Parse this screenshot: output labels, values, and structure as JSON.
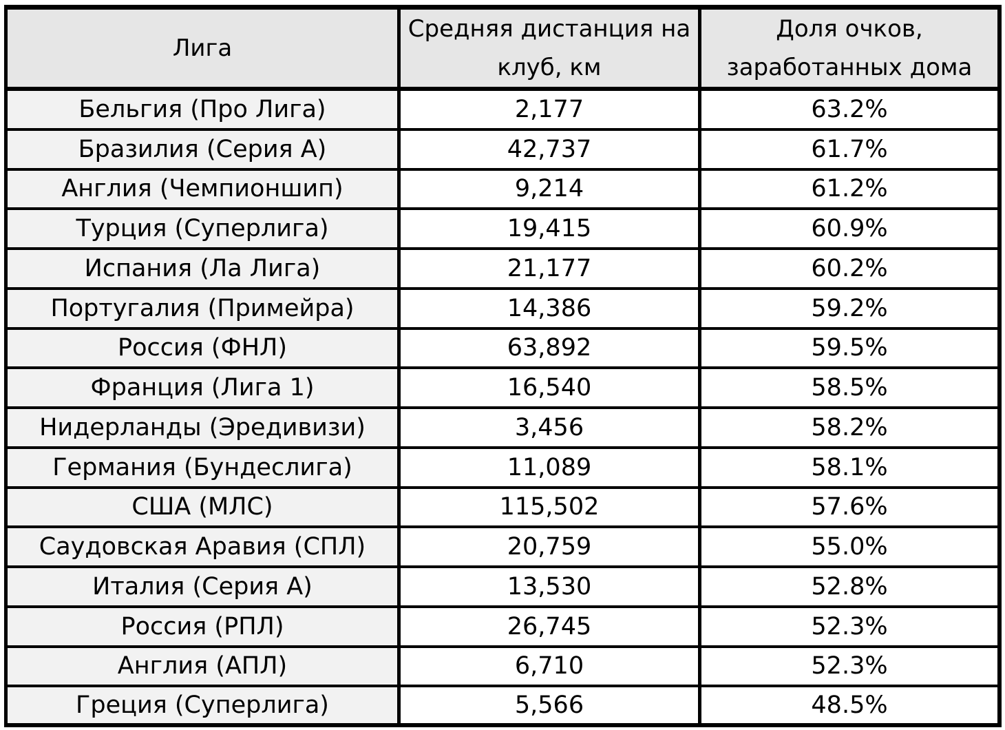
{
  "table": {
    "headers": [
      [
        "Лига"
      ],
      [
        "Средняя дистанция на",
        "клуб, км"
      ],
      [
        "Доля очков,",
        "заработанных дома"
      ]
    ],
    "rows": [
      {
        "league": "Бельгия (Про Лига)",
        "distance": "2,177",
        "home_share": "63.2%"
      },
      {
        "league": "Бразилия (Серия А)",
        "distance": "42,737",
        "home_share": "61.7%"
      },
      {
        "league": "Англия (Чемпионшип)",
        "distance": "9,214",
        "home_share": "61.2%"
      },
      {
        "league": "Турция (Суперлига)",
        "distance": "19,415",
        "home_share": "60.9%"
      },
      {
        "league": "Испания (Ла Лига)",
        "distance": "21,177",
        "home_share": "60.2%"
      },
      {
        "league": "Португалия (Примейра)",
        "distance": "14,386",
        "home_share": "59.2%"
      },
      {
        "league": "Россия (ФНЛ)",
        "distance": "63,892",
        "home_share": "59.5%"
      },
      {
        "league": "Франция (Лига 1)",
        "distance": "16,540",
        "home_share": "58.5%"
      },
      {
        "league": "Нидерланды (Эредивизи)",
        "distance": "3,456",
        "home_share": "58.2%"
      },
      {
        "league": "Германия (Бундеслига)",
        "distance": "11,089",
        "home_share": "58.1%"
      },
      {
        "league": "США (МЛС)",
        "distance": "115,502",
        "home_share": "57.6%"
      },
      {
        "league": "Саудовская Аравия (СПЛ)",
        "distance": "20,759",
        "home_share": "55.0%"
      },
      {
        "league": "Италия (Серия А)",
        "distance": "13,530",
        "home_share": "52.8%"
      },
      {
        "league": "Россия (РПЛ)",
        "distance": "26,745",
        "home_share": "52.3%"
      },
      {
        "league": "Англия (АПЛ)",
        "distance": "6,710",
        "home_share": "52.3%"
      },
      {
        "league": "Греция (Суперлига)",
        "distance": "5,566",
        "home_share": "48.5%"
      }
    ]
  }
}
